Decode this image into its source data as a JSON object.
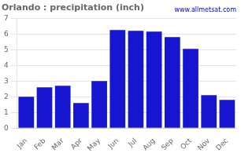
{
  "chart_data": {
    "type": "bar",
    "title": "Orlando : precipitation (inch)",
    "annotation": "www.allmetsat.com",
    "categories": [
      "Jan",
      "Feb",
      "Mar",
      "Apr",
      "May",
      "Jun",
      "Jul",
      "Aug",
      "Sep",
      "Oct",
      "Nov",
      "Dec"
    ],
    "values": [
      2.0,
      2.6,
      2.7,
      1.6,
      3.0,
      6.25,
      6.2,
      6.15,
      5.8,
      5.05,
      2.1,
      1.8
    ],
    "color": "#1616d0",
    "ylim": [
      0,
      7
    ],
    "yticks": [
      0,
      1,
      2,
      3,
      4,
      5,
      6,
      7
    ],
    "grid": true
  }
}
